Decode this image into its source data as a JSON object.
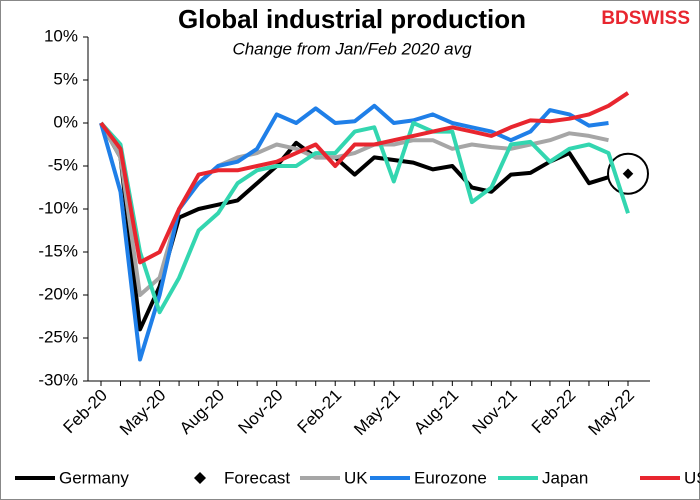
{
  "chart_data": {
    "type": "line",
    "title": "Global industrial production",
    "subtitle": "Change from Jan/Feb 2020 avg",
    "brand": "BDSWISS",
    "categories": [
      "Feb-20",
      null,
      null,
      "May-20",
      null,
      null,
      "Aug-20",
      null,
      null,
      "Nov-20",
      null,
      null,
      "Feb-21",
      null,
      null,
      "May-21",
      null,
      null,
      "Aug-21",
      null,
      null,
      "Nov-21",
      null,
      null,
      "Feb-22",
      null,
      null,
      "May-22"
    ],
    "ylim": [
      -30,
      10
    ],
    "yticks": [
      {
        "value": -30,
        "label": "-30%"
      },
      {
        "value": -25,
        "label": "-25%"
      },
      {
        "value": -20,
        "label": "-20%"
      },
      {
        "value": -15,
        "label": "-15%"
      },
      {
        "value": -10,
        "label": "-10%"
      },
      {
        "value": -5,
        "label": "-5%"
      },
      {
        "value": 0,
        "label": "0%"
      },
      {
        "value": 5,
        "label": "5%"
      },
      {
        "value": 10,
        "label": "10%"
      }
    ],
    "grid": false,
    "legend": "bottom",
    "series": [
      {
        "name": "Germany",
        "color": "#000000",
        "values": [
          0,
          -4,
          -24,
          -19,
          -11,
          -10,
          -9.5,
          -9,
          -7,
          -5,
          -2.3,
          -4,
          -4,
          -6,
          -4,
          -4.3,
          -4.6,
          -5.4,
          -5,
          -7.5,
          -8,
          -6,
          -5.8,
          -4.5,
          -3.5,
          -7,
          -6.3,
          null
        ]
      },
      {
        "name": "Forecast",
        "color": "#000000",
        "marker": "diamond",
        "values": [
          null,
          null,
          null,
          null,
          null,
          null,
          null,
          null,
          null,
          null,
          null,
          null,
          null,
          null,
          null,
          null,
          null,
          null,
          null,
          null,
          null,
          null,
          null,
          null,
          null,
          null,
          null,
          -5.9
        ]
      },
      {
        "name": "UK",
        "color": "#a6a6a6",
        "values": [
          0,
          -4,
          -20,
          -18,
          -10,
          -7,
          -5,
          -4,
          -3.5,
          -2.5,
          -3,
          -4,
          -4,
          -3.5,
          -2.5,
          -2.5,
          -2,
          -2,
          -3,
          -2.5,
          -2.8,
          -3,
          -2.5,
          -2,
          -1.2,
          -1.5,
          -2,
          null
        ]
      },
      {
        "name": "Eurozone",
        "color": "#1f7fe8",
        "values": [
          0,
          -8,
          -27.5,
          -20,
          -10,
          -7,
          -5,
          -4.5,
          -3,
          1,
          0,
          1.7,
          0,
          0.2,
          2,
          0,
          0.3,
          1,
          0,
          -0.5,
          -1,
          -2,
          -1,
          1.5,
          1,
          -0.3,
          0,
          null
        ]
      },
      {
        "name": "Japan",
        "color": "#33d6b0",
        "values": [
          0,
          -2.5,
          -15,
          -22,
          -18,
          -12.5,
          -10.5,
          -7,
          -5.5,
          -5,
          -5,
          -3.5,
          -3.5,
          -1,
          -0.5,
          -6.8,
          0,
          -1,
          -1,
          -9.2,
          -7.5,
          -2.5,
          -2.2,
          -4.5,
          -3,
          -2.5,
          -3.5,
          -10.5
        ]
      },
      {
        "name": "US",
        "color": "#e8262f",
        "values": [
          0,
          -3,
          -16.2,
          -15,
          -10,
          -6,
          -5.5,
          -5.5,
          -5,
          -4.5,
          -3.5,
          -2.5,
          -5,
          -2.5,
          -2.5,
          -2,
          -1.5,
          -1,
          -0.5,
          -1,
          -1.5,
          -0.5,
          0.3,
          0.2,
          0.5,
          1,
          2,
          3.5
        ]
      }
    ]
  }
}
